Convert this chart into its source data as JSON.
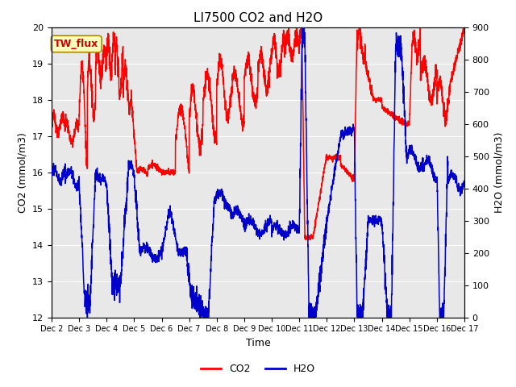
{
  "title": "LI7500 CO2 and H2O",
  "xlabel": "Time",
  "ylabel_left": "CO2 (mmol/m3)",
  "ylabel_right": "H2O (mmol/m3)",
  "co2_color": "#FF0000",
  "h2o_color": "#0000CC",
  "ylim_left": [
    12.0,
    20.0
  ],
  "ylim_right": [
    0,
    900
  ],
  "yticks_left": [
    12.0,
    13.0,
    14.0,
    15.0,
    16.0,
    17.0,
    18.0,
    19.0,
    20.0
  ],
  "yticks_right": [
    0,
    100,
    200,
    300,
    400,
    500,
    600,
    700,
    800,
    900
  ],
  "xtick_labels": [
    "Dec 2",
    "Dec 3",
    "Dec 4",
    "Dec 5",
    "Dec 6",
    "Dec 7",
    "Dec 8",
    "Dec 9",
    "Dec 10",
    "Dec 11",
    "Dec 12",
    "Dec 13",
    "Dec 14",
    "Dec 15",
    "Dec 16",
    "Dec 17"
  ],
  "annotation_text": "TW_flux",
  "background_color": "#E8E8E8",
  "figure_facecolor": "#FFFFFF",
  "legend_co2": "CO2",
  "legend_h2o": "H2O",
  "linewidth": 1.1,
  "title_fontsize": 11,
  "axis_fontsize": 9,
  "tick_fontsize": 8
}
